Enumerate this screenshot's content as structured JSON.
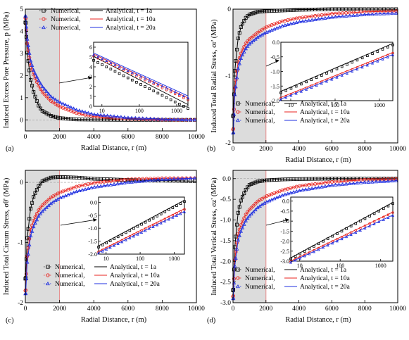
{
  "colors": {
    "t1": "#000000",
    "t10": "#e8231f",
    "t20": "#1f2fe0",
    "shade": "#dcdcdc",
    "shade_edge": "#e88a8a"
  },
  "chart_data": [
    {
      "panel": "(a)",
      "type": "line",
      "xlabel": "Radial Distance, r (m)",
      "ylabel": "Induced Excess Pore Pressure, p (MPa)",
      "xlim": [
        0,
        10000
      ],
      "ylim": [
        -0.5,
        5
      ],
      "xticks": [
        "0",
        "2000",
        "4000",
        "6000",
        "8000",
        "10000"
      ],
      "yticks": [
        "0",
        "1",
        "2",
        "3",
        "4",
        "5"
      ],
      "legend_position": "top",
      "legend": [
        {
          "marker": "Numerical,",
          "line": "Analytical, t = 1a",
          "series": "t1"
        },
        {
          "marker": "Numerical,",
          "line": "Analytical, t = 10a",
          "series": "t10"
        },
        {
          "marker": "Numerical,",
          "line": "Analytical, t = 20a",
          "series": "t20"
        }
      ],
      "inset": {
        "xticks": [
          "10",
          "100",
          "1000"
        ],
        "yticks": [
          "0",
          "1",
          "2",
          "3",
          "4",
          "5",
          "6"
        ],
        "ylim": [
          0,
          6.5
        ],
        "xlim": [
          6,
          2000
        ]
      },
      "series": [
        {
          "name": "t = 1a",
          "x": [
            20,
            100,
            300,
            500,
            800,
            1000,
            1500,
            2000,
            3000,
            4000,
            6000,
            8000,
            10000
          ],
          "y": [
            4.4,
            3.1,
            1.85,
            1.2,
            0.6,
            0.4,
            0.18,
            0.08,
            0.02,
            0.01,
            0,
            0,
            0
          ]
        },
        {
          "name": "t = 10a",
          "x": [
            20,
            100,
            300,
            500,
            800,
            1000,
            1500,
            2000,
            3000,
            4000,
            6000,
            8000,
            10000
          ],
          "y": [
            4.6,
            3.5,
            2.5,
            2.0,
            1.5,
            1.25,
            0.85,
            0.6,
            0.3,
            0.15,
            0.05,
            0.01,
            0
          ]
        },
        {
          "name": "t = 20a",
          "x": [
            20,
            100,
            300,
            500,
            800,
            1000,
            1500,
            2000,
            3000,
            4000,
            6000,
            8000,
            10000
          ],
          "y": [
            4.7,
            3.7,
            2.7,
            2.2,
            1.75,
            1.5,
            1.05,
            0.8,
            0.45,
            0.25,
            0.1,
            0.03,
            0
          ]
        }
      ]
    },
    {
      "panel": "(b)",
      "type": "line",
      "xlabel": "Radial Distance, r (m)",
      "ylabel": "Induced Total Radial Stress, σr' (MPa)",
      "xlim": [
        0,
        10000
      ],
      "ylim": [
        -2,
        0
      ],
      "xticks": [
        "0",
        "2000",
        "4000",
        "6000",
        "8000",
        "10000"
      ],
      "yticks": [
        "0",
        "-1",
        "-2"
      ],
      "legend_position": "bottom-right",
      "legend": [
        {
          "marker": "Numerical,",
          "line": "Analytical, t = 1a",
          "series": "t1"
        },
        {
          "marker": "Numerical,",
          "line": "Analytical, t = 10a",
          "series": "t10"
        },
        {
          "marker": "Numerical,",
          "line": "Analytical, t = 20a",
          "series": "t20"
        }
      ],
      "inset": {
        "xticks": [
          "10",
          "100",
          "1000"
        ],
        "yticks": [
          "0.0",
          "-0.5",
          "-1.0",
          "-1.5",
          "-2.0"
        ],
        "ylim": [
          -2,
          0
        ],
        "xlim": [
          6,
          2000
        ]
      },
      "series": [
        {
          "name": "t = 1a",
          "x": [
            20,
            100,
            300,
            500,
            800,
            1000,
            1500,
            2000,
            3000,
            4000,
            6000,
            8000,
            10000
          ],
          "y": [
            -1.6,
            -0.95,
            -0.45,
            -0.25,
            -0.12,
            -0.08,
            -0.04,
            -0.03,
            -0.02,
            -0.01,
            0,
            0,
            0
          ]
        },
        {
          "name": "t = 10a",
          "x": [
            20,
            100,
            300,
            500,
            800,
            1000,
            1500,
            2000,
            3000,
            4000,
            6000,
            8000,
            10000
          ],
          "y": [
            -1.8,
            -1.2,
            -0.8,
            -0.65,
            -0.5,
            -0.45,
            -0.35,
            -0.27,
            -0.18,
            -0.13,
            -0.07,
            -0.04,
            -0.03
          ]
        },
        {
          "name": "t = 20a",
          "x": [
            20,
            100,
            300,
            500,
            800,
            1000,
            1500,
            2000,
            3000,
            4000,
            6000,
            8000,
            10000
          ],
          "y": [
            -1.85,
            -1.3,
            -0.9,
            -0.72,
            -0.58,
            -0.52,
            -0.42,
            -0.35,
            -0.25,
            -0.19,
            -0.12,
            -0.08,
            -0.06
          ]
        }
      ]
    },
    {
      "panel": "(c)",
      "type": "line",
      "xlabel": "Radial Distance, r (m)",
      "ylabel": "Induced Total Circum Stress, σθ' (MPa)",
      "xlim": [
        0,
        10000
      ],
      "ylim": [
        -2,
        0.2
      ],
      "xticks": [
        "0",
        "2000",
        "4000",
        "6000",
        "8000",
        "10000"
      ],
      "yticks": [
        "0",
        "-1",
        "-2"
      ],
      "legend_position": "bottom-right",
      "legend": [
        {
          "marker": "Numerical,",
          "line": "Analytical, t = 1a",
          "series": "t1"
        },
        {
          "marker": "Numerical,",
          "line": "Analytical, t = 10a",
          "series": "t10"
        },
        {
          "marker": "Numerical,",
          "line": "Analytical, t = 20a",
          "series": "t20"
        }
      ],
      "inset": {
        "xticks": [
          "10",
          "100",
          "1000"
        ],
        "yticks": [
          "0.0",
          "-0.5",
          "-1.0",
          "-1.5",
          "-2.0"
        ],
        "ylim": [
          -2,
          0.2
        ],
        "xlim": [
          6,
          2000
        ]
      },
      "series": [
        {
          "name": "t = 1a",
          "x": [
            20,
            100,
            300,
            500,
            800,
            1000,
            1500,
            2000,
            3000,
            4000,
            6000,
            8000,
            10000
          ],
          "y": [
            -1.6,
            -0.95,
            -0.45,
            -0.22,
            -0.05,
            0.02,
            0.08,
            0.09,
            0.08,
            0.06,
            0.04,
            0.03,
            0.02
          ]
        },
        {
          "name": "t = 10a",
          "x": [
            20,
            100,
            300,
            500,
            800,
            1000,
            1500,
            2000,
            3000,
            4000,
            6000,
            8000,
            10000
          ],
          "y": [
            -1.8,
            -1.25,
            -0.8,
            -0.62,
            -0.45,
            -0.38,
            -0.25,
            -0.17,
            -0.07,
            -0.01,
            0.05,
            0.07,
            0.07
          ]
        },
        {
          "name": "t = 20a",
          "x": [
            20,
            100,
            300,
            500,
            800,
            1000,
            1500,
            2000,
            3000,
            4000,
            6000,
            8000,
            10000
          ],
          "y": [
            -1.85,
            -1.35,
            -0.9,
            -0.72,
            -0.55,
            -0.48,
            -0.35,
            -0.26,
            -0.15,
            -0.08,
            0.0,
            0.05,
            0.07
          ]
        }
      ]
    },
    {
      "panel": "(d)",
      "type": "line",
      "xlabel": "Radial Distance, r (m)",
      "ylabel": "Induced Total Vertical Stress, σz' (MPa)",
      "xlim": [
        0,
        10000
      ],
      "ylim": [
        -3,
        0.2
      ],
      "xticks": [
        "0",
        "2000",
        "4000",
        "6000",
        "8000",
        "10000"
      ],
      "yticks": [
        "0.0",
        "-0.5",
        "-1.0",
        "-1.5",
        "-2.0",
        "-2.5",
        "-3.0"
      ],
      "legend_position": "bottom-right",
      "legend": [
        {
          "marker": "Numerical,",
          "line": "Analytical, t = 1a",
          "series": "t1"
        },
        {
          "marker": "Numerical,",
          "line": "Analytical, t = 10a",
          "series": "t10"
        },
        {
          "marker": "Numerical,",
          "line": "Analytical, t = 20a",
          "series": "t20"
        }
      ],
      "inset": {
        "xticks": [
          "10",
          "100",
          "1000"
        ],
        "yticks": [
          "0.0",
          "-0.5",
          "-1.0",
          "-1.5",
          "-2.0",
          "-2.5",
          "-3.0"
        ],
        "ylim": [
          -3,
          0.2
        ],
        "xlim": [
          6,
          2000
        ]
      },
      "series": [
        {
          "name": "t = 1a",
          "x": [
            20,
            100,
            300,
            500,
            800,
            1000,
            1500,
            2000,
            3000,
            4000,
            6000,
            8000,
            10000
          ],
          "y": [
            -2.7,
            -1.7,
            -0.85,
            -0.5,
            -0.25,
            -0.15,
            -0.07,
            -0.04,
            -0.02,
            -0.01,
            0,
            0,
            0
          ]
        },
        {
          "name": "t = 10a",
          "x": [
            20,
            100,
            300,
            500,
            800,
            1000,
            1500,
            2000,
            3000,
            4000,
            6000,
            8000,
            10000
          ],
          "y": [
            -2.85,
            -2.0,
            -1.35,
            -1.1,
            -0.85,
            -0.75,
            -0.55,
            -0.43,
            -0.28,
            -0.18,
            -0.08,
            -0.03,
            -0.01
          ]
        },
        {
          "name": "t = 20a",
          "x": [
            20,
            100,
            300,
            500,
            800,
            1000,
            1500,
            2000,
            3000,
            4000,
            6000,
            8000,
            10000
          ],
          "y": [
            -2.9,
            -2.15,
            -1.5,
            -1.25,
            -1.0,
            -0.9,
            -0.7,
            -0.57,
            -0.4,
            -0.29,
            -0.16,
            -0.09,
            -0.05
          ]
        }
      ]
    }
  ]
}
